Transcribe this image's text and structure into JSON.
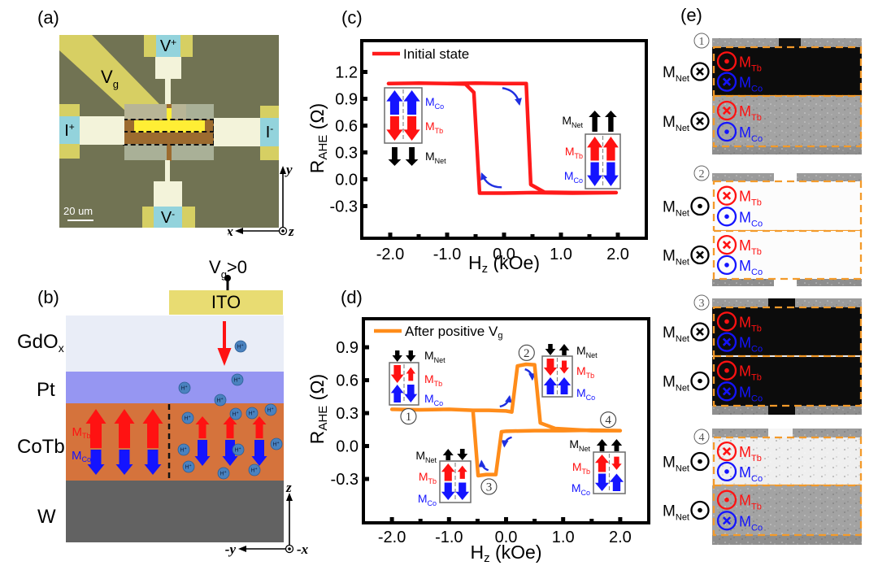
{
  "moment_labels": {
    "tb": {
      "main": "M",
      "sub": "Tb"
    },
    "co": {
      "main": "M",
      "sub": "Co"
    },
    "net": {
      "main": "M",
      "sub": "Net"
    }
  },
  "colors": {
    "tb": "#ff1212",
    "co": "#1414ff",
    "net": "#000000",
    "sweep_arrow": "#1f2fe0",
    "domain_box": "#f39a2a",
    "proton": "#4a82bf"
  },
  "panel_a": {
    "label": "(a)",
    "gate": {
      "main": "V",
      "sub": "g"
    },
    "pads": {
      "v_plus": {
        "main": "V",
        "sup": "+"
      },
      "v_minus": {
        "main": "V",
        "sup": "-"
      },
      "i_plus": {
        "main": "I",
        "sup": "+"
      },
      "i_minus": {
        "main": "I",
        "sup": "-"
      }
    },
    "scale_bar": "20 um",
    "axes": {
      "vertical": "y",
      "horizontal": "-x",
      "normal": "z"
    }
  },
  "panel_b": {
    "label": "(b)",
    "gate_bias": {
      "main": "V",
      "sub": "g",
      "rest": ">0"
    },
    "electrode": "ITO",
    "layers": [
      {
        "name": "GdO",
        "sub": "x"
      },
      {
        "name": "Pt",
        "sub": ""
      },
      {
        "name": "CoTb",
        "sub": ""
      },
      {
        "name": "W",
        "sub": ""
      }
    ],
    "proton": {
      "main": "H",
      "sup": "+"
    },
    "axes": {
      "vertical": "z",
      "horizontal": "-y",
      "normal": "-x"
    }
  },
  "chart_data": [
    {
      "id": "c",
      "panel_label": "(c)",
      "type": "line",
      "title": "",
      "xlabel": "Hz (kOe)",
      "xlabel_parts": {
        "main": "H",
        "sub": "z",
        "rest": " (kOe)"
      },
      "ylabel": "RAHE (Ω)",
      "ylabel_parts": {
        "main": "R",
        "sub": "AHE",
        "rest": " (Ω)"
      },
      "xlim": [
        -2.5,
        2.5
      ],
      "ylim": [
        -0.66,
        1.55
      ],
      "xticks": [
        -2,
        -1,
        0,
        1,
        2
      ],
      "xtick_labels": [
        "-2.0",
        "-1.0",
        "0.0",
        "1.0",
        "2.0"
      ],
      "xminor": [
        -1.5,
        -0.5,
        0.5,
        1.5
      ],
      "yticks": [
        -0.3,
        0,
        0.3,
        0.6,
        0.9,
        1.2
      ],
      "ytick_labels": [
        "-0.3",
        "0.0",
        "0.3",
        "0.6",
        "0.9",
        "1.2"
      ],
      "grid": false,
      "legend": "top-left",
      "series": [
        {
          "name": "Initial state",
          "name_parts": {
            "main": "Initial state",
            "sub": ""
          },
          "color": "#ff1a1a",
          "x": [
            -2.03,
            -1.5,
            -1.0,
            -0.5,
            0.0,
            0.39,
            0.47,
            0.71,
            1.2,
            1.97,
            1.2,
            0.5,
            0.0,
            -0.43,
            -0.53,
            -0.68,
            -1.0,
            -1.5,
            -2.03
          ],
          "y": [
            1.07,
            1.075,
            1.07,
            1.075,
            1.07,
            1.07,
            -0.06,
            -0.145,
            -0.15,
            -0.15,
            -0.155,
            -0.15,
            -0.155,
            -0.155,
            0.97,
            1.065,
            1.07,
            1.075,
            1.07
          ]
        }
      ],
      "sweep_arrows": [
        {
          "from": [
            -0.03,
            1.02
          ],
          "to": [
            0.27,
            0.84
          ],
          "rotation": "cw"
        },
        {
          "from": [
            -0.04,
            -0.09
          ],
          "to": [
            -0.39,
            0.06
          ],
          "rotation": "cw"
        }
      ],
      "state_markers": [],
      "insets": [
        {
          "id": "c-left",
          "net": [
            "down",
            "down"
          ],
          "columns": [
            [
              {
                "m": "co",
                "dir": "up",
                "size": "full"
              },
              {
                "m": "tb",
                "dir": "down",
                "size": "full"
              }
            ],
            [
              {
                "m": "co",
                "dir": "up",
                "size": "full"
              },
              {
                "m": "tb",
                "dir": "down",
                "size": "full"
              }
            ]
          ]
        },
        {
          "id": "c-right",
          "net": [
            "up",
            "up"
          ],
          "columns": [
            [
              {
                "m": "tb",
                "dir": "up",
                "size": "full"
              },
              {
                "m": "co",
                "dir": "down",
                "size": "full"
              }
            ],
            [
              {
                "m": "tb",
                "dir": "up",
                "size": "full"
              },
              {
                "m": "co",
                "dir": "down",
                "size": "full"
              }
            ]
          ]
        }
      ]
    },
    {
      "id": "d",
      "panel_label": "(d)",
      "type": "line",
      "title": "",
      "xlabel": "Hz (kOe)",
      "xlabel_parts": {
        "main": "H",
        "sub": "z",
        "rest": " (kOe)"
      },
      "ylabel": "RAHE (Ω)",
      "ylabel_parts": {
        "main": "R",
        "sub": "AHE",
        "rest": " (Ω)"
      },
      "xlim": [
        -2.5,
        2.5
      ],
      "ylim": [
        -0.7,
        1.16
      ],
      "xticks": [
        -2,
        -1,
        0,
        1,
        2
      ],
      "xtick_labels": [
        "-2.0",
        "-1.0",
        "0.0",
        "1.0",
        "2.0"
      ],
      "xminor": [
        -1.5,
        -0.5,
        0.5,
        1.5
      ],
      "yticks": [
        -0.3,
        0,
        0.3,
        0.6,
        0.9
      ],
      "ytick_labels": [
        "-0.3",
        "0.0",
        "0.3",
        "0.6",
        "0.9"
      ],
      "grid": false,
      "legend": "top-left",
      "series": [
        {
          "name": "After positive Vg",
          "name_parts": {
            "main": "After positive V",
            "sub": "g"
          },
          "color": "#ff8c1a",
          "x": [
            -2.0,
            -1.5,
            -1.0,
            -0.58,
            -0.3,
            0.0,
            0.1,
            0.2,
            0.35,
            0.5,
            0.6,
            0.86,
            1.5,
            2.0,
            1.5,
            1.0,
            0.5,
            0.0,
            -0.08,
            -0.18,
            -0.35,
            -0.49,
            -0.58
          ],
          "y": [
            0.335,
            0.33,
            0.335,
            0.325,
            0.325,
            0.32,
            0.31,
            0.73,
            0.745,
            0.74,
            0.21,
            0.16,
            0.14,
            0.14,
            0.145,
            0.14,
            0.14,
            0.135,
            0.13,
            -0.26,
            -0.26,
            -0.27,
            0.325
          ]
        }
      ],
      "sweep_arrows": [
        {
          "from": [
            -0.11,
            0.36
          ],
          "to": [
            0.06,
            0.45
          ],
          "rotation": "ccw"
        },
        {
          "from": [
            0.33,
            0.7
          ],
          "to": [
            0.46,
            0.61
          ],
          "rotation": "cw"
        },
        {
          "from": [
            0.1,
            0.08
          ],
          "to": [
            -0.03,
            0.0
          ],
          "rotation": "ccw"
        },
        {
          "from": [
            -0.31,
            -0.22
          ],
          "to": [
            -0.43,
            -0.14
          ],
          "rotation": "cw"
        }
      ],
      "state_markers": [
        {
          "label": "1",
          "x": -1.71,
          "y": 0.27
        },
        {
          "label": "2",
          "x": 0.36,
          "y": 0.85
        },
        {
          "label": "3",
          "x": -0.3,
          "y": -0.37
        },
        {
          "label": "4",
          "x": 1.79,
          "y": 0.24
        }
      ],
      "insets": [
        {
          "id": "d-1",
          "net": [
            "down",
            "down"
          ],
          "columns": [
            [
              {
                "m": "tb",
                "dir": "down",
                "size": "full"
              },
              {
                "m": "co",
                "dir": "up",
                "size": "full"
              }
            ],
            [
              {
                "m": "tb",
                "dir": "up",
                "size": "small"
              },
              {
                "m": "co",
                "dir": "down",
                "size": "full"
              }
            ]
          ]
        },
        {
          "id": "d-2",
          "net": [
            "down",
            "up"
          ],
          "columns": [
            [
              {
                "m": "tb",
                "dir": "down",
                "size": "full"
              },
              {
                "m": "co",
                "dir": "up",
                "size": "full"
              }
            ],
            [
              {
                "m": "tb",
                "dir": "down",
                "size": "small"
              },
              {
                "m": "co",
                "dir": "up",
                "size": "full"
              }
            ]
          ]
        },
        {
          "id": "d-3",
          "net": [
            "up",
            "down"
          ],
          "columns": [
            [
              {
                "m": "tb",
                "dir": "up",
                "size": "full"
              },
              {
                "m": "co",
                "dir": "down",
                "size": "full"
              }
            ],
            [
              {
                "m": "tb",
                "dir": "up",
                "size": "small"
              },
              {
                "m": "co",
                "dir": "down",
                "size": "full"
              }
            ]
          ]
        },
        {
          "id": "d-4",
          "net": [
            "up",
            "up"
          ],
          "columns": [
            [
              {
                "m": "tb",
                "dir": "up",
                "size": "full"
              },
              {
                "m": "co",
                "dir": "down",
                "size": "full"
              }
            ],
            [
              {
                "m": "tb",
                "dir": "down",
                "size": "small"
              },
              {
                "m": "co",
                "dir": "up",
                "size": "full"
              }
            ]
          ]
        }
      ]
    }
  ],
  "panel_e": {
    "label": "(e)",
    "states": [
      {
        "marker": "1",
        "rows": [
          {
            "contrast": "dark",
            "net": "into",
            "tb": "out",
            "co": "into"
          },
          {
            "contrast": "gray",
            "net": "into",
            "tb": "into",
            "co": "out"
          }
        ]
      },
      {
        "marker": "2",
        "rows": [
          {
            "contrast": "white",
            "net": "out",
            "tb": "into",
            "co": "out"
          },
          {
            "contrast": "white",
            "net": "into",
            "tb": "into",
            "co": "out"
          }
        ]
      },
      {
        "marker": "3",
        "rows": [
          {
            "contrast": "dark",
            "net": "into",
            "tb": "out",
            "co": "into"
          },
          {
            "contrast": "dark",
            "net": "out",
            "tb": "out",
            "co": "into"
          }
        ]
      },
      {
        "marker": "4",
        "rows": [
          {
            "contrast": "light",
            "net": "out",
            "tb": "into",
            "co": "out"
          },
          {
            "contrast": "gray",
            "net": "out",
            "tb": "out",
            "co": "into"
          }
        ]
      }
    ]
  }
}
